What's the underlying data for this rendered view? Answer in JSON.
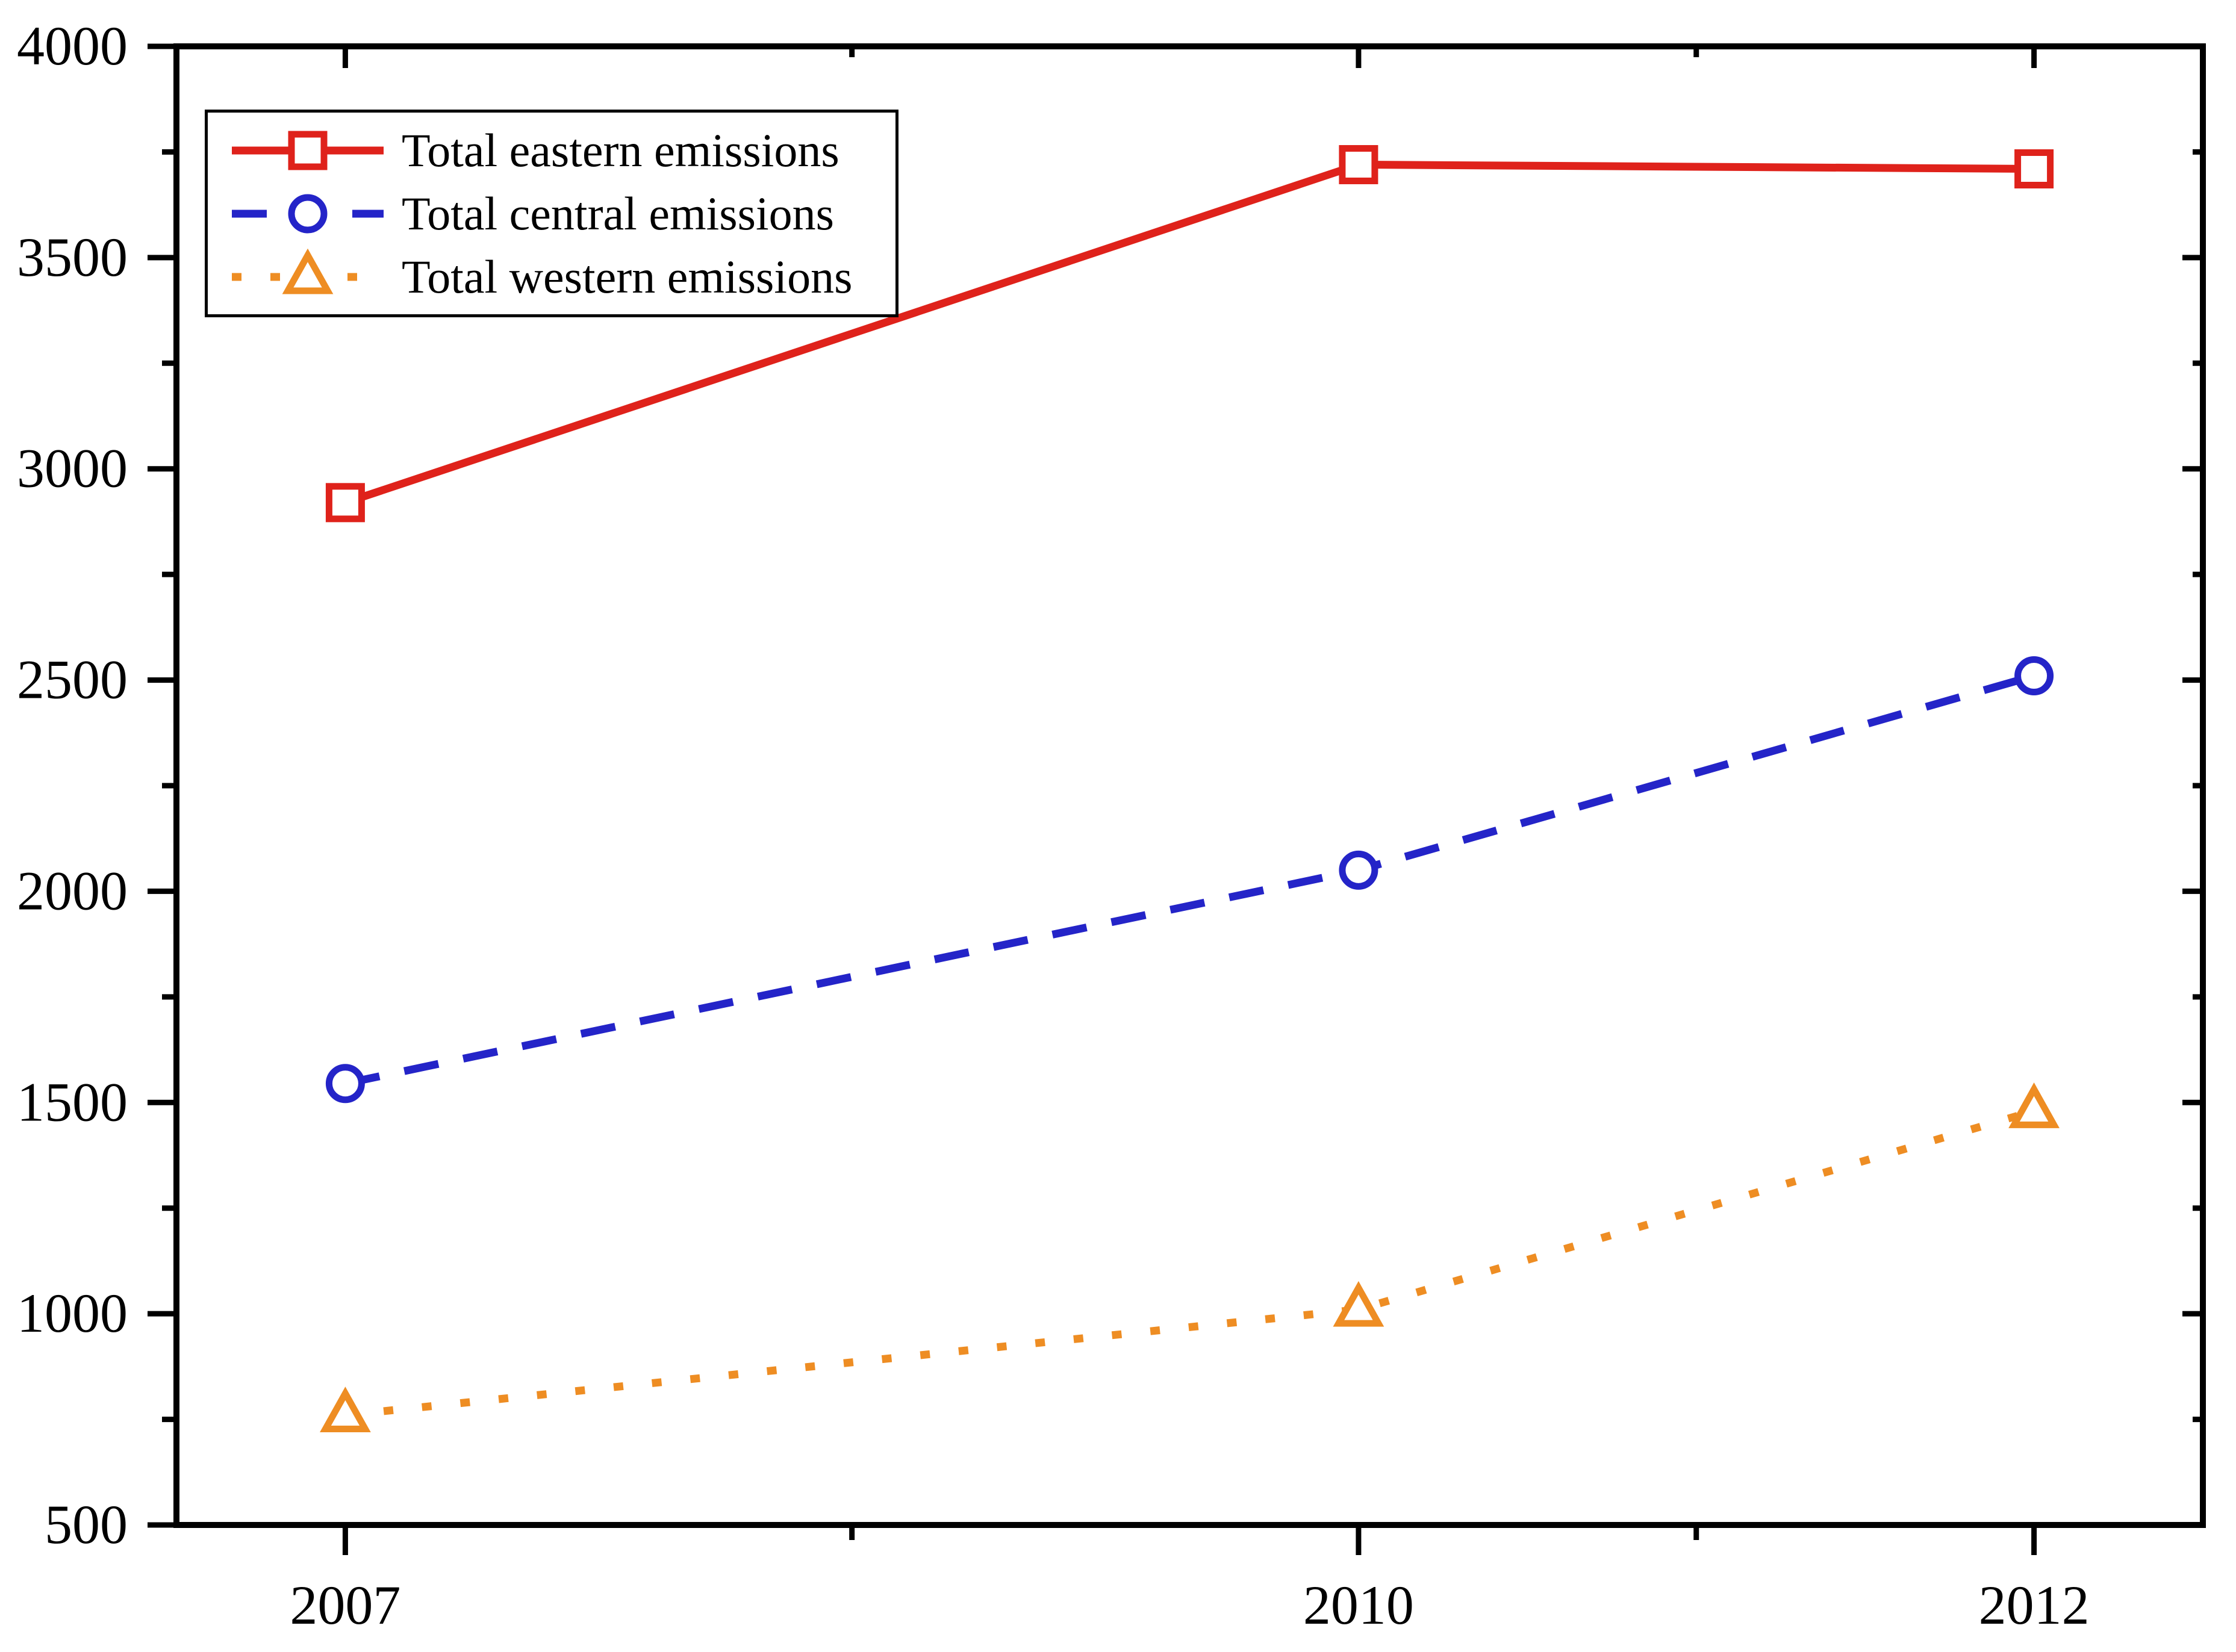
{
  "chart_data": {
    "type": "line",
    "title": "",
    "xlabel": "",
    "ylabel": "",
    "grid": false,
    "background_color": "#ffffff",
    "frame_color": "#000000",
    "text_color": "#000000",
    "legend_position": "top-left",
    "xlim": [
      2006.5,
      2012.5
    ],
    "ylim": [
      500,
      4000
    ],
    "x": [
      2007,
      2010,
      2012
    ],
    "x_tick_labels": [
      "2007",
      "2010",
      "2012"
    ],
    "x_minor_ticks": [
      2008.5,
      2011
    ],
    "y_major_ticks": [
      500,
      1000,
      1500,
      2000,
      2500,
      3000,
      3500,
      4000
    ],
    "y_tick_labels": [
      "500",
      "1000",
      "1500",
      "2000",
      "2500",
      "3000",
      "3500",
      "4000"
    ],
    "y_minor_ticks": [
      750,
      1250,
      1750,
      2250,
      2750,
      3250,
      3750
    ],
    "series": [
      {
        "name": "Total eastern emissions",
        "slug": "eastern",
        "color": "#df221b",
        "line_style": "solid",
        "marker": "square",
        "values": [
          2920,
          3720,
          3710
        ]
      },
      {
        "name": "Total central emissions",
        "slug": "central",
        "color": "#2424c8",
        "line_style": "dashed",
        "marker": "circle",
        "values": [
          1545,
          2050,
          2510
        ]
      },
      {
        "name": "Total western emissions",
        "slug": "western",
        "color": "#ee8d23",
        "line_style": "dotted",
        "marker": "triangle",
        "values": [
          760,
          1010,
          1480
        ]
      }
    ]
  }
}
